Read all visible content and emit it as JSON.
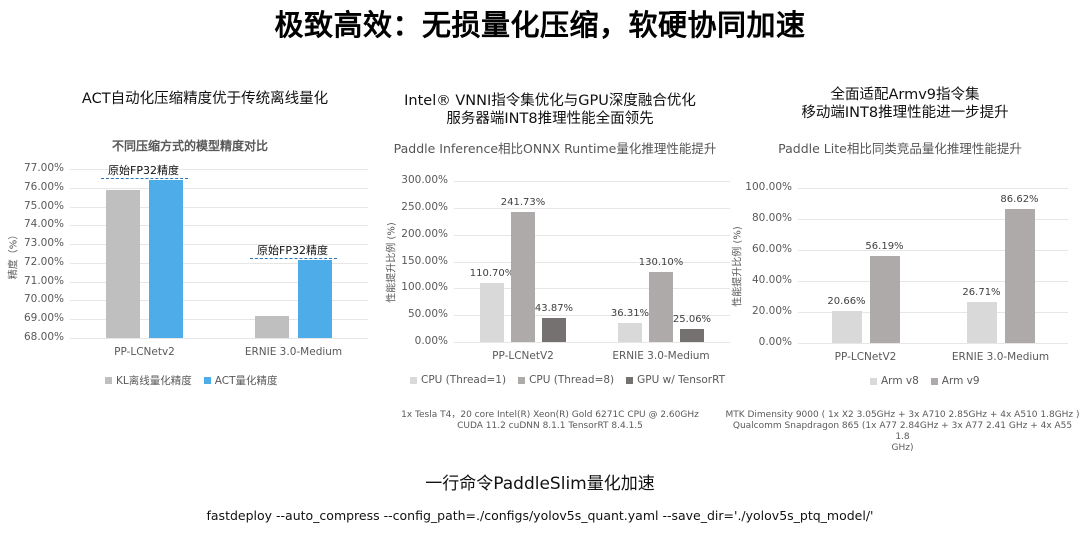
{
  "header": {
    "title": "极致高效：无损量化压缩，软硬协同加速"
  },
  "panels": [
    {
      "title_lines": [
        "ACT自动化压缩精度优于传统离线量化"
      ],
      "subtitle": "不同压缩方式的模型精度对比",
      "ylabel": "精度（%）",
      "ref_label": "原始FP32精度",
      "legend": [
        {
          "label": "KL离线量化精度",
          "color": "#bfbfbf"
        },
        {
          "label": "ACT量化精度",
          "color": "#4eade9"
        }
      ]
    },
    {
      "title_lines": [
        "Intel® VNNI指令集优化与GPU深度融合优化",
        "服务器端INT8推理性能全面领先"
      ],
      "subtitle": "Paddle Inference相比ONNX Runtime量化推理性能提升",
      "ylabel": "性能提升比例 (%)",
      "legend": [
        {
          "label": "CPU (Thread=1)",
          "color": "#d9d9d9"
        },
        {
          "label": "CPU (Thread=8)",
          "color": "#aeaaaa"
        },
        {
          "label": "GPU w/ TensorRT",
          "color": "#767171"
        }
      ],
      "note_lines": [
        "1x Tesla T4，20 core  Intel(R) Xeon(R) Gold 6271C CPU @ 2.60GHz",
        "CUDA 11.2 cuDNN 8.1.1 TensorRT 8.4.1.5"
      ]
    },
    {
      "title_lines": [
        "全面适配Armv9指令集",
        "移动端INT8推理性能进一步提升"
      ],
      "subtitle": "Paddle Lite相比同类竞品量化推理性能提升",
      "ylabel": "性能提升比例 (%)",
      "legend": [
        {
          "label": "Arm v8",
          "color": "#d9d9d9"
        },
        {
          "label": "Arm v9",
          "color": "#aeaaaa"
        }
      ],
      "note_lines": [
        "MTK Dimensity 9000 ( 1x X2 3.05GHz + 3x A710 2.85GHz + 4x A510 1.8GHz )",
        "Qualcomm Snapdragon 865 (1x A77 2.84GHz + 3x A77 2.41 GHz + 4x A55 1.8",
        "GHz)"
      ]
    }
  ],
  "footer": {
    "title": "一行命令PaddleSlim量化加速",
    "command": "fastdeploy --auto_compress --config_path=./configs/yolov5s_quant.yaml --save_dir='./yolov5s_ptq_model/'"
  },
  "chart_data": [
    {
      "type": "bar",
      "title": "不同压缩方式的模型精度对比",
      "xlabel": "",
      "ylabel": "精度（%）",
      "ylim": [
        68,
        77
      ],
      "yticks": [
        "68.00%",
        "69.00%",
        "70.00%",
        "71.00%",
        "72.00%",
        "73.00%",
        "74.00%",
        "75.00%",
        "76.00%",
        "77.00%"
      ],
      "categories": [
        "PP-LCNetv2",
        "ERNIE 3.0-Medium"
      ],
      "series": [
        {
          "name": "KL离线量化精度",
          "values": [
            75.9,
            69.15
          ],
          "color": "#bfbfbf"
        },
        {
          "name": "ACT量化精度",
          "values": [
            76.4,
            72.15
          ],
          "color": "#4eade9"
        }
      ],
      "annotations": [
        {
          "text": "原始FP32精度",
          "category": "PP-LCNetv2",
          "value": 76.5
        },
        {
          "text": "原始FP32精度",
          "category": "ERNIE 3.0-Medium",
          "value": 72.25
        }
      ],
      "grid": true,
      "legend_position": "bottom"
    },
    {
      "type": "bar",
      "title": "Paddle Inference相比ONNX Runtime量化推理性能提升",
      "xlabel": "",
      "ylabel": "性能提升比例 (%)",
      "ylim": [
        0,
        300
      ],
      "yticks": [
        "0.00%",
        "50.00%",
        "100.00%",
        "150.00%",
        "200.00%",
        "250.00%",
        "300.00%"
      ],
      "categories": [
        "PP-LCNetV2",
        "ERNIE 3.0-Medium"
      ],
      "series": [
        {
          "name": "CPU (Thread=1)",
          "values": [
            110.7,
            36.31
          ],
          "labels": [
            "110.70%",
            "36.31%"
          ],
          "color": "#d9d9d9"
        },
        {
          "name": "CPU (Thread=8)",
          "values": [
            241.73,
            130.1
          ],
          "labels": [
            "241.73%",
            "130.10%"
          ],
          "color": "#aeaaaa"
        },
        {
          "name": "GPU w/ TensorRT",
          "values": [
            43.87,
            25.06
          ],
          "labels": [
            "43.87%",
            "25.06%"
          ],
          "color": "#767171"
        }
      ],
      "grid": true,
      "legend_position": "bottom"
    },
    {
      "type": "bar",
      "title": "Paddle Lite相比同类竞品量化推理性能提升",
      "xlabel": "",
      "ylabel": "性能提升比例 (%)",
      "ylim": [
        0,
        100
      ],
      "yticks": [
        "0.00%",
        "20.00%",
        "40.00%",
        "60.00%",
        "80.00%",
        "100.00%"
      ],
      "categories": [
        "PP-LCNetV2",
        "ERNIE 3.0-Medium"
      ],
      "series": [
        {
          "name": "Arm v8",
          "values": [
            20.66,
            26.71
          ],
          "labels": [
            "20.66%",
            "26.71%"
          ],
          "color": "#d9d9d9"
        },
        {
          "name": "Arm v9",
          "values": [
            56.19,
            86.62
          ],
          "labels": [
            "56.19%",
            "86.62%"
          ],
          "color": "#aeaaaa"
        }
      ],
      "grid": true,
      "legend_position": "bottom"
    }
  ]
}
